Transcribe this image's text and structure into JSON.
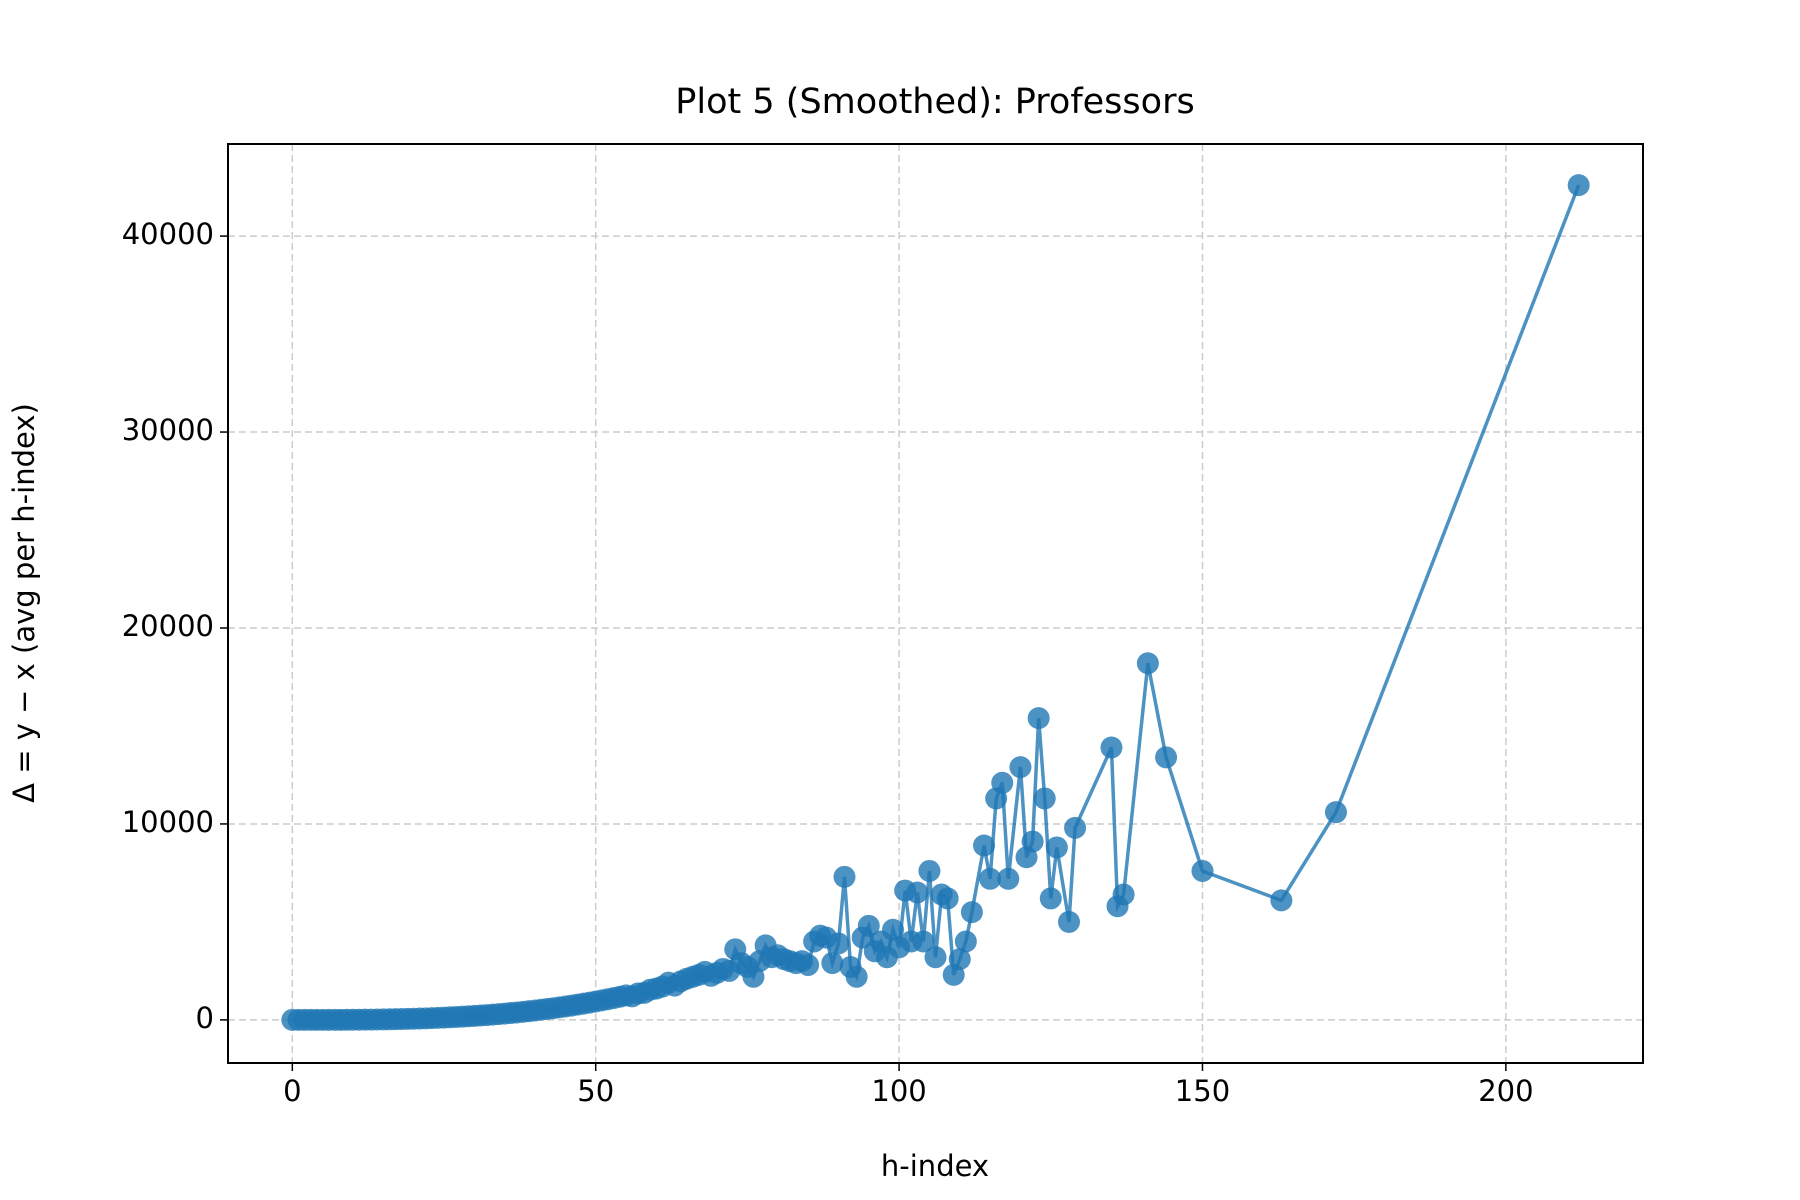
{
  "chart_data": {
    "type": "line",
    "title": "Plot 5 (Smoothed): Professors",
    "x_label": "h-index",
    "y_label": "Δ = y − x (avg per h-index)",
    "x": [
      0,
      1,
      2,
      3,
      4,
      5,
      6,
      7,
      8,
      9,
      10,
      11,
      12,
      13,
      14,
      15,
      16,
      17,
      18,
      19,
      20,
      21,
      22,
      23,
      24,
      25,
      26,
      27,
      28,
      29,
      30,
      31,
      32,
      33,
      34,
      35,
      36,
      37,
      38,
      39,
      40,
      41,
      42,
      43,
      44,
      45,
      46,
      47,
      48,
      49,
      50,
      51,
      52,
      53,
      54,
      55,
      56,
      57,
      58,
      59,
      60,
      61,
      62,
      63,
      64,
      65,
      66,
      67,
      68,
      69,
      70,
      71,
      72,
      73,
      74,
      75,
      76,
      77,
      78,
      79,
      80,
      81,
      82,
      83,
      84,
      85,
      86,
      87,
      88,
      89,
      90,
      91,
      92,
      93,
      94,
      95,
      96,
      97,
      98,
      99,
      100,
      101,
      102,
      103,
      104,
      105,
      106,
      107,
      108,
      109,
      110,
      111,
      112,
      114,
      115,
      116,
      117,
      118,
      120,
      121,
      122,
      123,
      124,
      125,
      126,
      128,
      129,
      135,
      136,
      137,
      141,
      144,
      150,
      163,
      172,
      212
    ],
    "series": [
      {
        "name": "Δ",
        "color": "#1f77b4",
        "values": [
          0,
          0,
          0,
          0,
          0,
          1,
          2,
          3,
          4,
          5,
          8,
          10,
          13,
          16,
          21,
          25,
          31,
          37,
          44,
          51,
          60,
          69,
          80,
          91,
          104,
          117,
          132,
          148,
          165,
          183,
          203,
          223,
          246,
          270,
          295,
          322,
          350,
          380,
          412,
          445,
          480,
          517,
          556,
          596,
          639,
          683,
          730,
          779,
          829,
          882,
          938,
          995,
          1055,
          1117,
          1181,
          1248,
          1200,
          1350,
          1380,
          1540,
          1600,
          1702,
          1900,
          1750,
          1966,
          2100,
          2200,
          2300,
          2450,
          2250,
          2400,
          2600,
          2500,
          3600,
          2900,
          2700,
          2200,
          3000,
          3800,
          3200,
          3300,
          3100,
          3000,
          2900,
          3000,
          2800,
          4000,
          4300,
          4200,
          2900,
          3900,
          7300,
          2700,
          2200,
          4200,
          4800,
          3500,
          4000,
          3200,
          4600,
          3700,
          6600,
          4000,
          6500,
          4000,
          7600,
          3200,
          6400,
          6200,
          2300,
          3100,
          4000,
          5500,
          8900,
          7200,
          11300,
          12100,
          7200,
          12900,
          8300,
          9100,
          15400,
          11300,
          6200,
          8800,
          5000,
          9800,
          13900,
          5800,
          6400,
          18200,
          13400,
          7600,
          6100,
          10600,
          42600
        ]
      }
    ],
    "xlim": [
      -10.6,
      222.6
    ],
    "ylim": [
      -2200,
      44700
    ],
    "xticks": [
      0,
      50,
      100,
      150,
      200
    ],
    "yticks": [
      0,
      10000,
      20000,
      30000,
      40000
    ],
    "grid": true
  }
}
